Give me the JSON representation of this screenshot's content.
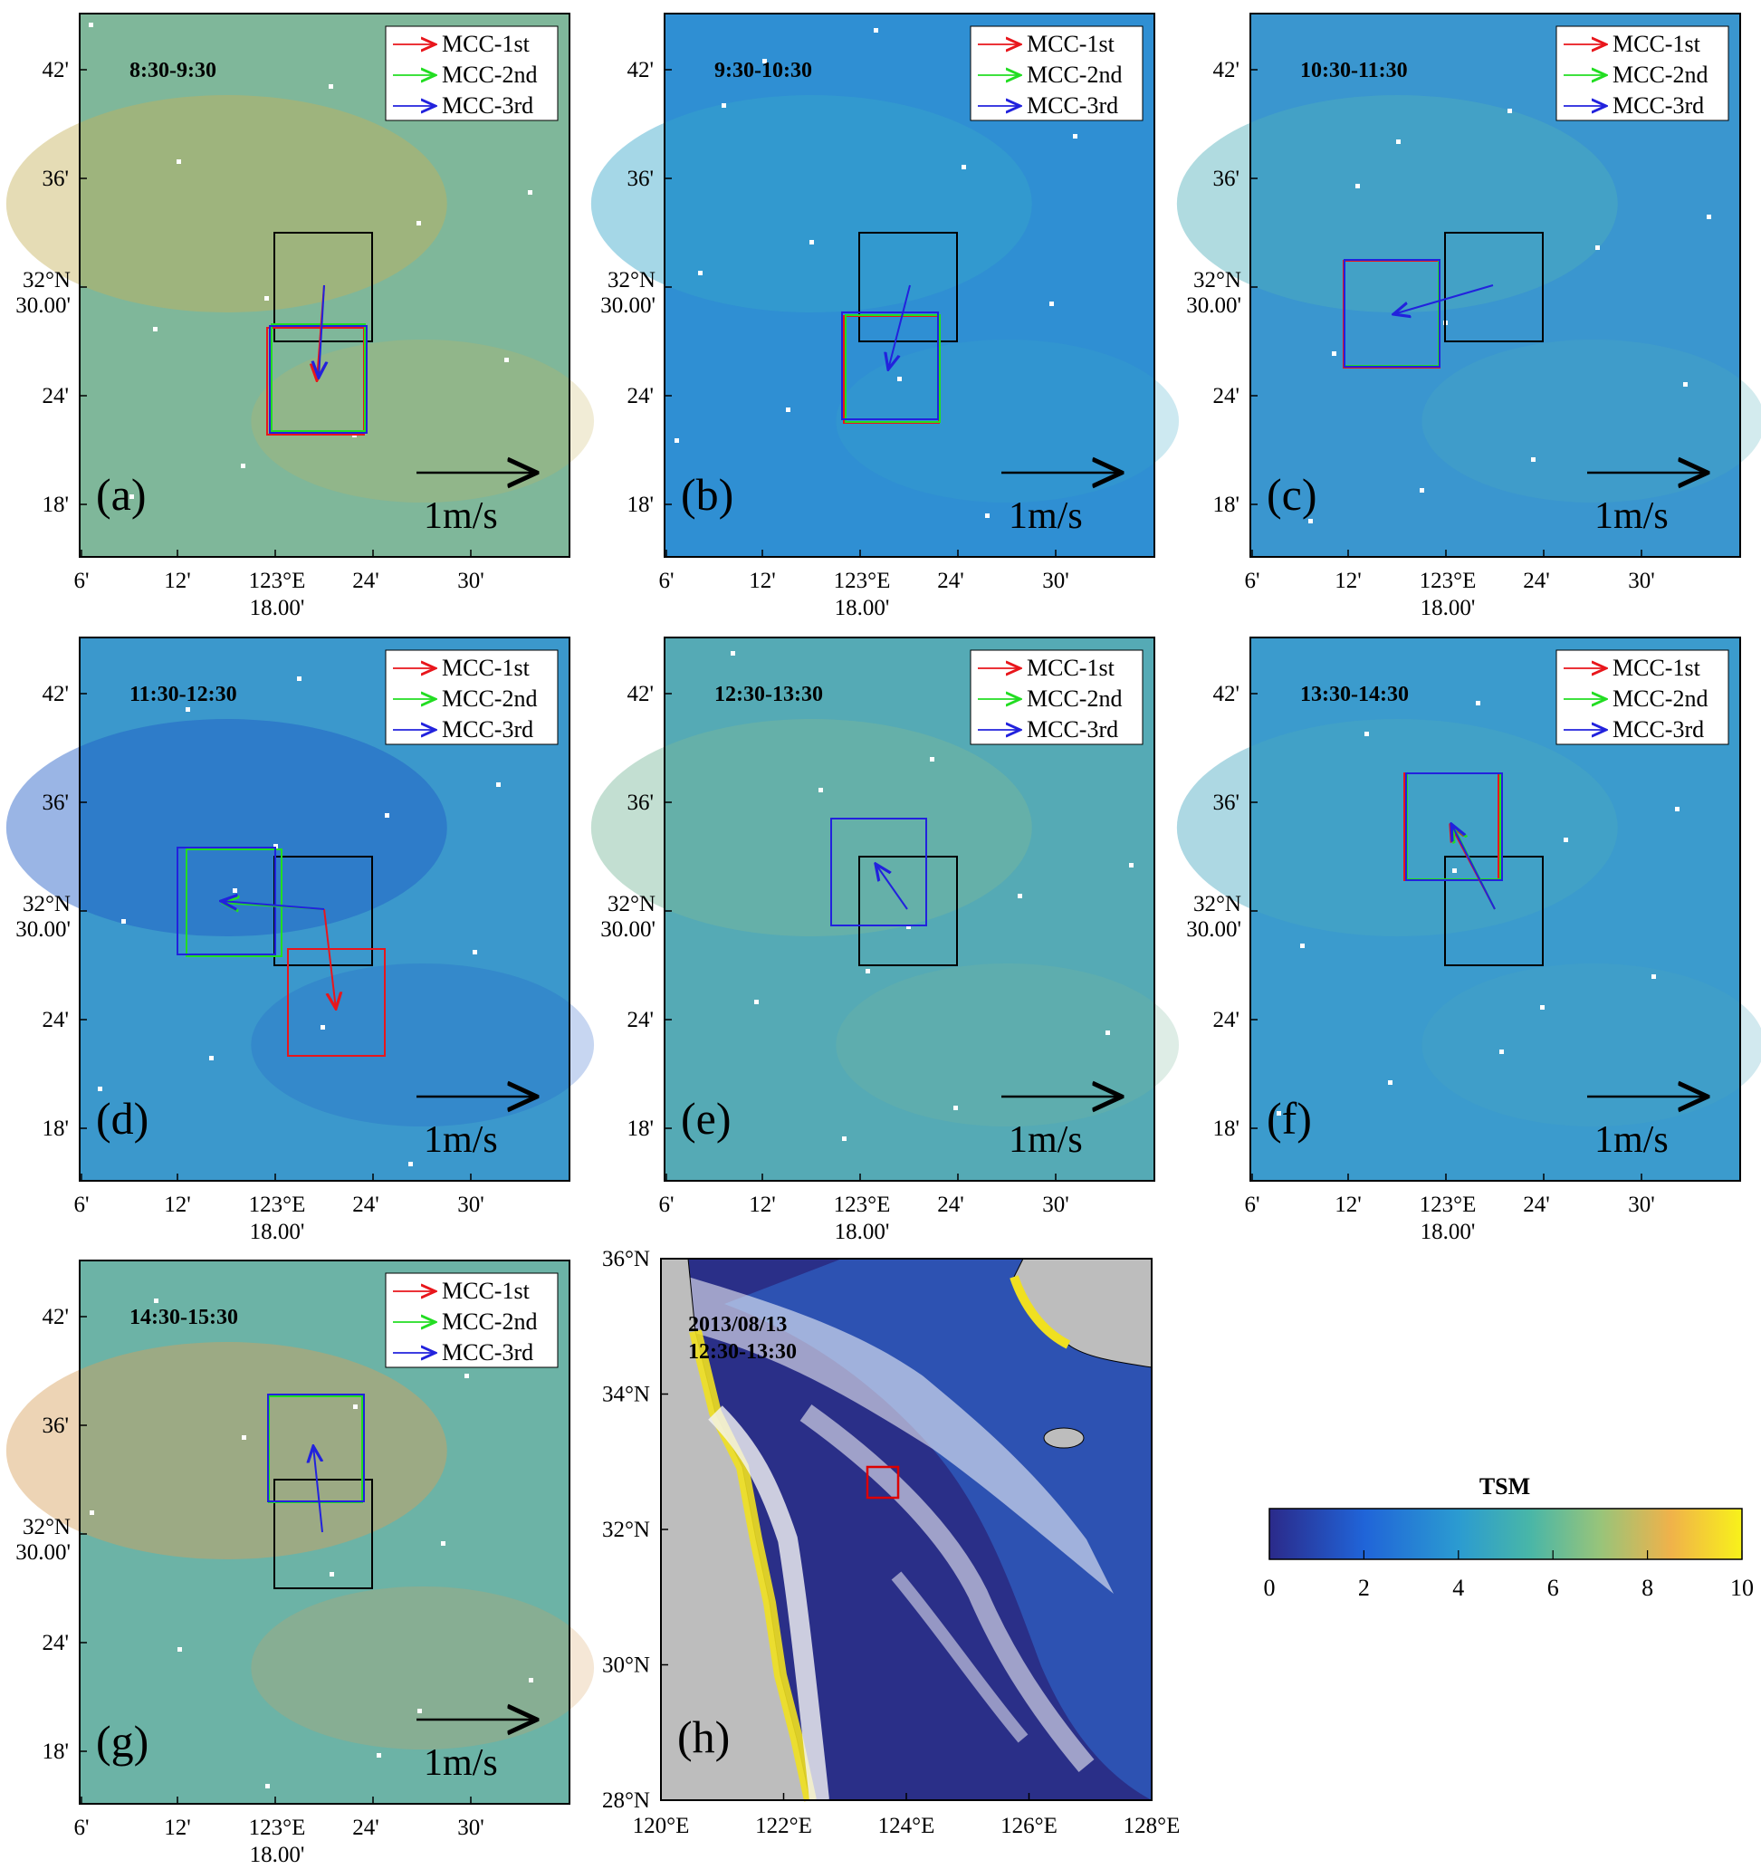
{
  "colors": {
    "mcc1": "#e8161c",
    "mcc2": "#22dd22",
    "mcc3": "#2222dd",
    "ref_box": "#000000",
    "cloud": "#ffffff",
    "land": "#bdbdbd",
    "region_box": "#dd0000"
  },
  "panel_axes": {
    "x_ticks": [
      "6'",
      "12'",
      "30'"
    ],
    "x_center_top": "123°E",
    "x_center_bottom": "18.00'",
    "x_right": "24'",
    "y_ticks": [
      "42'",
      "36'",
      "24'",
      "18'"
    ],
    "y_center_top": "32°N",
    "y_center_bottom": "30.00'"
  },
  "legend": [
    "MCC-1st",
    "MCC-2nd",
    "MCC-3rd"
  ],
  "scale_label": "1m/s",
  "panels": [
    {
      "letter": "(a)",
      "time": "8:30-9:30",
      "base": "#7fb79a",
      "tint": "#c6b25a",
      "level": 0.62
    },
    {
      "letter": "(b)",
      "time": "9:30-10:30",
      "base": "#2f8fd3",
      "tint": "#38a6c9",
      "level": 0.38
    },
    {
      "letter": "(c)",
      "time": "10:30-11:30",
      "base": "#3a96cf",
      "tint": "#4fb0bb",
      "level": 0.42
    },
    {
      "letter": "(d)",
      "time": "11:30-12:30",
      "base": "#3b98cc",
      "tint": "#1f5bc6",
      "level": 0.4
    },
    {
      "letter": "(e)",
      "time": "12:30-13:30",
      "base": "#55aab5",
      "tint": "#7ab89c",
      "level": 0.5
    },
    {
      "letter": "(f)",
      "time": "13:30-14:30",
      "base": "#3b9bcd",
      "tint": "#4aa8c1",
      "level": 0.43
    },
    {
      "letter": "(g)",
      "time": "14:30-15:30",
      "base": "#6cb3a6",
      "tint": "#d6a05a",
      "level": 0.6
    }
  ],
  "overview": {
    "letter": "(h)",
    "date": "2013/08/13",
    "time": "12:30-13:30",
    "x_ticks": [
      "120°E",
      "122°E",
      "124°E",
      "126°E",
      "128°E"
    ],
    "y_ticks": [
      "36°N",
      "34°N",
      "32°N",
      "30°N",
      "28°N"
    ]
  },
  "colorbar": {
    "title": "TSM",
    "ticks": [
      "0",
      "2",
      "4",
      "6",
      "8",
      "10"
    ],
    "range": [
      0,
      10
    ],
    "stops": [
      "#2b2a8a",
      "#2064d8",
      "#2b9bd1",
      "#48b6a8",
      "#98c47a",
      "#f0b24a",
      "#f8f21a"
    ]
  }
}
